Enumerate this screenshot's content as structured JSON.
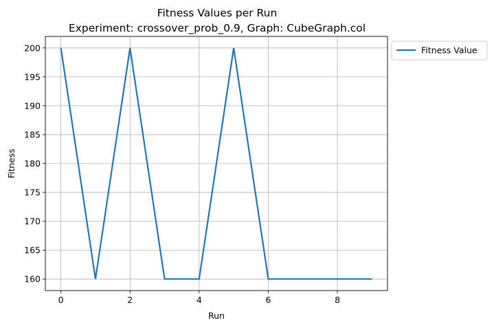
{
  "chart_data": {
    "type": "line",
    "title": "Fitness Values per Run",
    "subtitle": "Experiment: crossover_prob_0.9, Graph: CubeGraph.col",
    "xlabel": "Run",
    "ylabel": "Fitness",
    "x": [
      0,
      1,
      2,
      3,
      4,
      5,
      6,
      7,
      8,
      9
    ],
    "series": [
      {
        "name": "Fitness Value",
        "color": "#1f77b4",
        "values": [
          200,
          160,
          200,
          160,
          160,
          200,
          160,
          160,
          160,
          160
        ]
      }
    ],
    "xlim": [
      -0.45,
      9.45
    ],
    "ylim": [
      158,
      202
    ],
    "xticks": [
      0,
      2,
      4,
      6,
      8
    ],
    "yticks": [
      160,
      165,
      170,
      175,
      180,
      185,
      190,
      195,
      200
    ],
    "grid": true,
    "legend_position": "outside-top-right"
  }
}
